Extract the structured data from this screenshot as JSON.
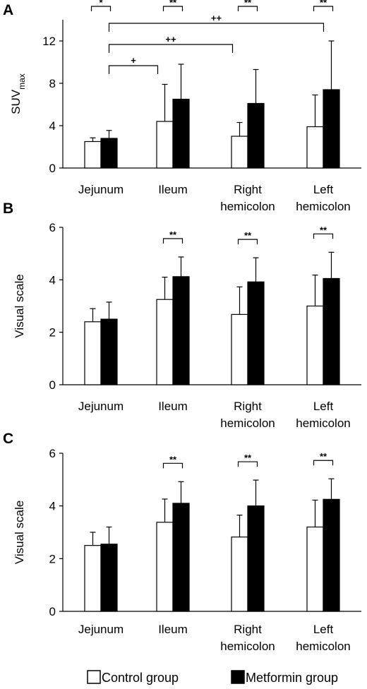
{
  "chart_data": [
    {
      "type": "bar",
      "panel": "A",
      "ylabel": "SUV",
      "ylabel_sub": "max",
      "ylim": [
        0,
        14
      ],
      "yticks": [
        "0",
        "4",
        "8",
        "12"
      ],
      "categories": [
        [
          "Jejunum"
        ],
        [
          "Ileum"
        ],
        [
          "Right",
          "hemicolon"
        ],
        [
          "Left",
          "hemicolon"
        ]
      ],
      "series": [
        {
          "name": "Control group",
          "values": [
            2.5,
            4.4,
            3.0,
            3.9
          ],
          "errors": [
            0.35,
            3.5,
            1.3,
            3.0
          ]
        },
        {
          "name": "Metformin group",
          "values": [
            2.8,
            6.5,
            6.1,
            7.4
          ],
          "errors": [
            0.75,
            3.3,
            3.2,
            4.6
          ]
        }
      ],
      "pair_significance": [
        "*",
        "**",
        "**",
        "**"
      ],
      "comparisons": [
        {
          "from": 0,
          "to": 1,
          "label": "+"
        },
        {
          "from": 0,
          "to": 2,
          "label": "++"
        },
        {
          "from": 0,
          "to": 3,
          "label": "++"
        }
      ]
    },
    {
      "type": "bar",
      "panel": "B",
      "ylabel": "Visual scale",
      "ylim": [
        0,
        6
      ],
      "yticks": [
        "0",
        "2",
        "4",
        "6"
      ],
      "categories": [
        [
          "Jejunum"
        ],
        [
          "Ileum"
        ],
        [
          "Right",
          "hemicolon"
        ],
        [
          "Left",
          "hemicolon"
        ]
      ],
      "series": [
        {
          "name": "Control group",
          "values": [
            2.4,
            3.25,
            2.68,
            3.0
          ],
          "errors": [
            0.5,
            0.85,
            1.05,
            1.18
          ]
        },
        {
          "name": "Metformin group",
          "values": [
            2.5,
            4.12,
            3.92,
            4.05
          ],
          "errors": [
            0.65,
            0.75,
            0.92,
            1.0
          ]
        }
      ],
      "pair_significance": [
        "",
        "**",
        "**",
        "**"
      ],
      "comparisons": []
    },
    {
      "type": "bar",
      "panel": "C",
      "ylabel": "Visual scale",
      "ylim": [
        0,
        6
      ],
      "yticks": [
        "0",
        "2",
        "4",
        "6"
      ],
      "categories": [
        [
          "Jejunum"
        ],
        [
          "Ileum"
        ],
        [
          "Right",
          "hemicolon"
        ],
        [
          "Left",
          "hemicolon"
        ]
      ],
      "series": [
        {
          "name": "Control group",
          "values": [
            2.5,
            3.38,
            2.82,
            3.2
          ],
          "errors": [
            0.5,
            0.88,
            0.83,
            1.02
          ]
        },
        {
          "name": "Metformin group",
          "values": [
            2.55,
            4.1,
            4.0,
            4.25
          ],
          "errors": [
            0.65,
            0.82,
            0.98,
            0.78
          ]
        }
      ],
      "pair_significance": [
        "",
        "**",
        "**",
        "**"
      ],
      "comparisons": []
    }
  ],
  "legend": {
    "items": [
      {
        "label": "Control group",
        "color": "#ffffff"
      },
      {
        "label": "Metformin group",
        "color": "#000000"
      }
    ]
  },
  "colors": {
    "control": "#ffffff",
    "metformin": "#000000",
    "axis": "#000000"
  }
}
